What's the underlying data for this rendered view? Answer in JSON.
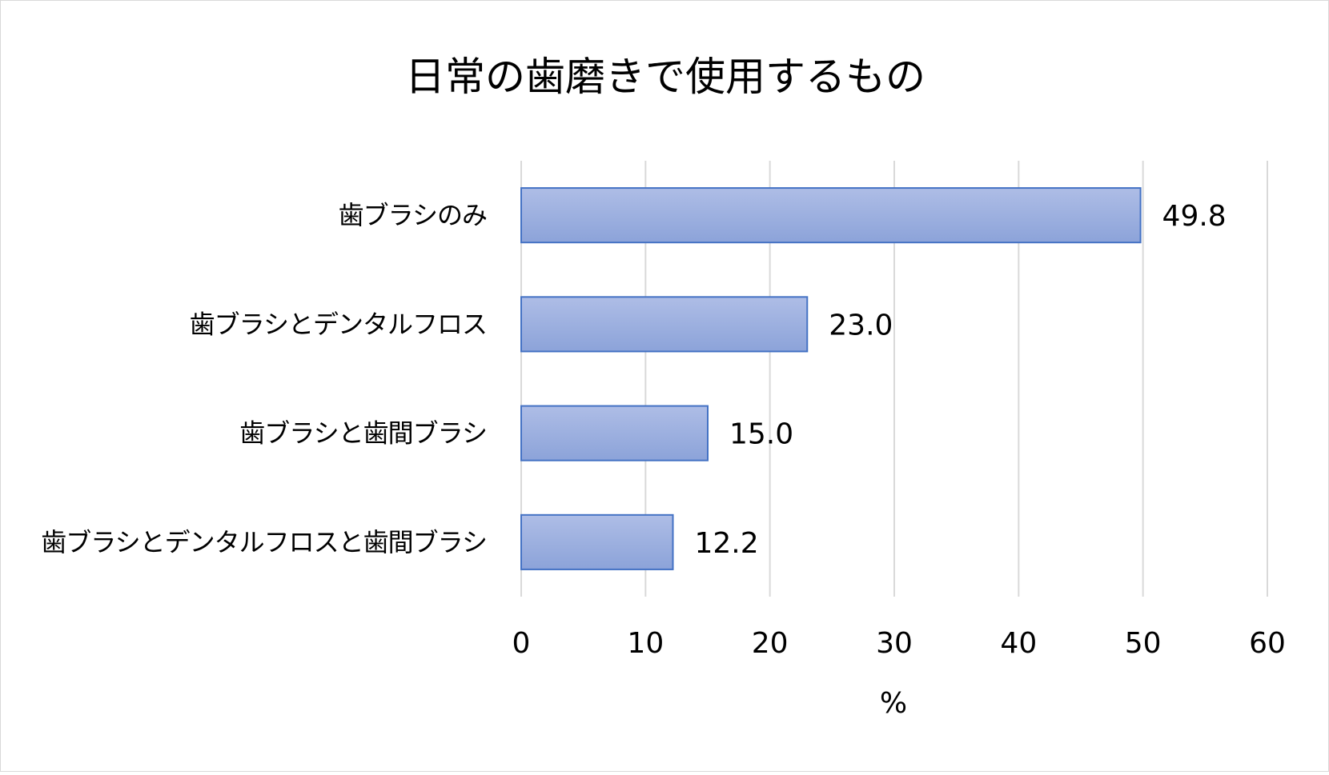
{
  "chart_data": {
    "type": "bar",
    "orientation": "horizontal",
    "title": "日常の歯磨きで使用するもの",
    "xlabel": "%",
    "ylabel": "",
    "categories": [
      "歯ブラシのみ",
      "歯ブラシとデンタルフロス",
      "歯ブラシと歯間ブラシ",
      "歯ブラシとデンタルフロスと歯間ブラシ"
    ],
    "values": [
      49.8,
      23.0,
      15.0,
      12.2
    ],
    "value_labels": [
      "49.8",
      "23.0",
      "15.0",
      "12.2"
    ],
    "xlim": [
      0,
      60
    ],
    "ticks": [
      0,
      10,
      20,
      30,
      40,
      50,
      60
    ],
    "tick_labels": [
      "0",
      "10",
      "20",
      "30",
      "40",
      "50",
      "60"
    ],
    "grid": "vertical",
    "legend": "none",
    "colors": {
      "bar_top": "#aebde6",
      "bar_bottom": "#8ca3d9",
      "bar_stroke": "#4472c4",
      "grid": "#d9d9d9"
    }
  }
}
